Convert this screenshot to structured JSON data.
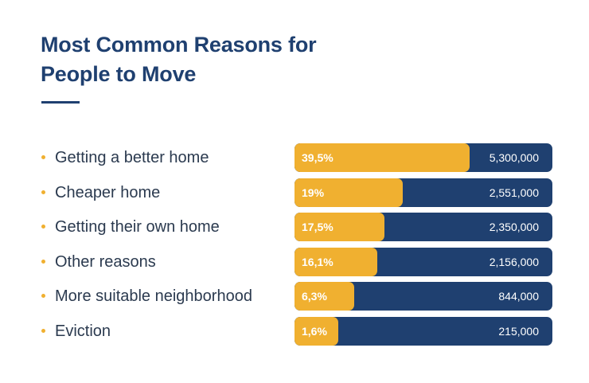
{
  "chart_data": {
    "type": "bar",
    "orientation": "horizontal",
    "title": "Most Common Reasons for People to Move",
    "categories": [
      "Getting a better home",
      "Cheaper home",
      "Getting their own home",
      "Other reasons",
      "More suitable neighborhood",
      "Eviction"
    ],
    "series": [
      {
        "values": [
          39.5,
          19,
          17.5,
          16.1,
          6.3,
          1.6
        ],
        "labels": [
          "39,5%",
          "19%",
          "17,5%",
          "16,1%",
          "6,3%",
          "1,6%"
        ]
      }
    ],
    "counts": [
      "5,300,000",
      "2,551,000",
      "2,350,000",
      "2,156,000",
      "844,000",
      "215,000"
    ],
    "fill_fraction": [
      0.68,
      0.42,
      0.35,
      0.32,
      0.23,
      0.17
    ],
    "colors": {
      "bar_fill": "#f0b030",
      "bar_track": "#1f4070",
      "title": "#1f4070",
      "bullet": "#f0b030",
      "label": "#2b3a4f"
    }
  }
}
